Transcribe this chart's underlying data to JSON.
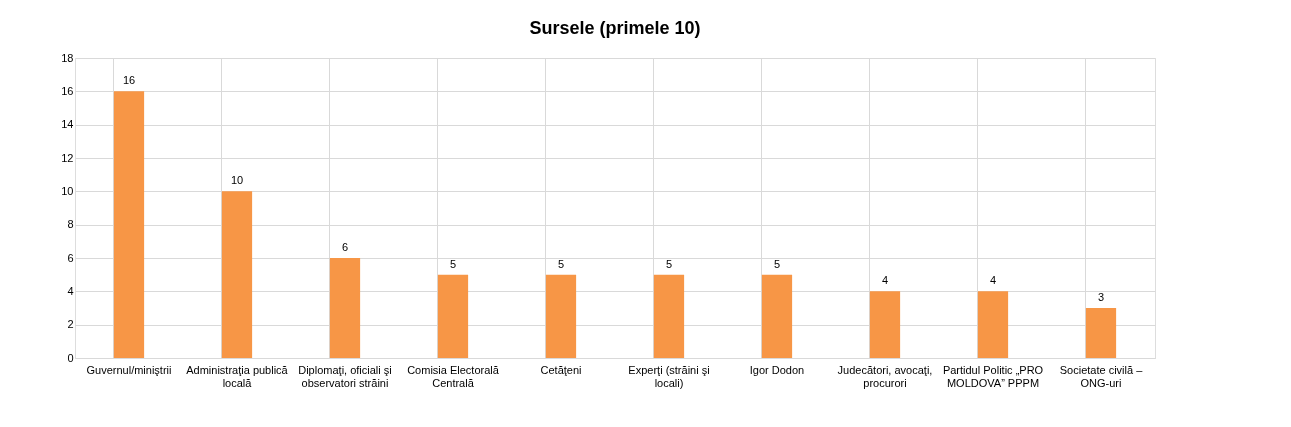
{
  "chart_data": {
    "type": "bar",
    "title": "Sursele (primele 10)",
    "categories": [
      "Guvernul/miniştrii",
      "Administraţia publică locală",
      "Diplomaţi, oficiali şi observatori străini",
      "Comisia Electorală Centrală",
      "Cetăţeni",
      "Experţi (străini şi locali)",
      "Igor Dodon",
      "Judecători, avocaţi, procurori",
      "Partidul Politic „PRO MOLDOVA” PPPM",
      "Societate civilă – ONG-uri"
    ],
    "values": [
      16,
      10,
      6,
      5,
      5,
      5,
      5,
      4,
      4,
      3
    ],
    "color": "#f79646",
    "ylim": [
      0,
      18
    ],
    "yticks": [
      0,
      2,
      4,
      6,
      8,
      10,
      12,
      14,
      16,
      18
    ],
    "grid": true,
    "data_labels": true
  }
}
